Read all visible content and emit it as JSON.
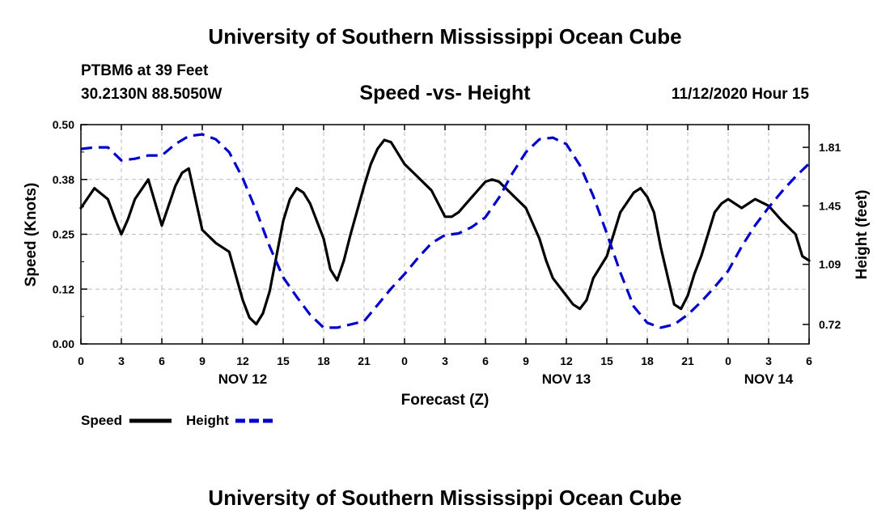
{
  "header": {
    "title": "University of Southern Mississippi Ocean Cube",
    "station": "PTBM6 at 39 Feet",
    "coords": "30.2130N 88.5050W",
    "chart_title": "Speed -vs- Height",
    "run_time": "11/12/2020 Hour 15"
  },
  "footer": {
    "title": "University of Southern Mississippi Ocean Cube"
  },
  "colors": {
    "speed": "#000000",
    "height": "#0000cc",
    "grid": "#bbbbbb"
  },
  "chart_data": {
    "type": "line",
    "title": "Speed -vs- Height",
    "xlabel": "Forecast (Z)",
    "ylabel": "Speed (Knots)",
    "y2label": "Height (feet)",
    "xlim": [
      0,
      54
    ],
    "ylim": [
      0,
      0.5
    ],
    "y2lim": [
      0.6,
      1.95
    ],
    "x_ticks": [
      0,
      3,
      6,
      9,
      12,
      15,
      18,
      21,
      24,
      27,
      30,
      33,
      36,
      39,
      42,
      45,
      48,
      51,
      54
    ],
    "x_tick_labels": [
      "0",
      "3",
      "6",
      "9",
      "12",
      "15",
      "18",
      "21",
      "0",
      "3",
      "6",
      "9",
      "12",
      "15",
      "18",
      "21",
      "0",
      "3",
      "6"
    ],
    "y_ticks": [
      0,
      0.125,
      0.25,
      0.375,
      0.5
    ],
    "y_tick_labels": [
      "0.00",
      "0.12",
      "0.25",
      "0.38",
      "0.50"
    ],
    "y2_ticks": [
      0.72,
      1.09,
      1.45,
      1.81
    ],
    "y2_tick_labels": [
      "0.72",
      "1.09",
      "1.45",
      "1.81"
    ],
    "date_labels": [
      {
        "x": 12,
        "label": "NOV 12"
      },
      {
        "x": 36,
        "label": "NOV 13"
      },
      {
        "x": 51,
        "label": "NOV 14"
      }
    ],
    "legend_position": "bottom-left",
    "series": [
      {
        "name": "Speed",
        "axis": "left",
        "style": "solid",
        "x": [
          0,
          1,
          2,
          2.6,
          3,
          3.5,
          4,
          5,
          6,
          7,
          7.5,
          8,
          9,
          10,
          11,
          12,
          12.5,
          13,
          13.5,
          14,
          15,
          15.5,
          16,
          16.5,
          17,
          18,
          18.5,
          19,
          19.5,
          20,
          21,
          21.5,
          22,
          22.5,
          23,
          24,
          25,
          26,
          26.5,
          27,
          27.5,
          28,
          29,
          30,
          30.5,
          31,
          32,
          33,
          34,
          34.5,
          35,
          36,
          36.5,
          37,
          37.5,
          38,
          39,
          40,
          41,
          41.5,
          42,
          42.5,
          43,
          44,
          44.5,
          45,
          45.5,
          46,
          47,
          47.5,
          48,
          48.5,
          49,
          50,
          51,
          52,
          53,
          53.5,
          54
        ],
        "values": [
          0.31,
          0.355,
          0.33,
          0.28,
          0.25,
          0.285,
          0.33,
          0.375,
          0.27,
          0.36,
          0.39,
          0.4,
          0.26,
          0.23,
          0.21,
          0.1,
          0.06,
          0.045,
          0.07,
          0.12,
          0.28,
          0.33,
          0.355,
          0.345,
          0.32,
          0.24,
          0.17,
          0.145,
          0.19,
          0.25,
          0.36,
          0.41,
          0.445,
          0.465,
          0.46,
          0.41,
          0.38,
          0.35,
          0.32,
          0.29,
          0.29,
          0.3,
          0.335,
          0.37,
          0.375,
          0.37,
          0.34,
          0.31,
          0.24,
          0.19,
          0.15,
          0.11,
          0.09,
          0.08,
          0.1,
          0.15,
          0.2,
          0.3,
          0.345,
          0.355,
          0.335,
          0.3,
          0.22,
          0.09,
          0.08,
          0.11,
          0.16,
          0.2,
          0.3,
          0.32,
          0.33,
          0.32,
          0.31,
          0.33,
          0.315,
          0.28,
          0.25,
          0.2,
          0.19
        ]
      },
      {
        "name": "Height",
        "axis": "right",
        "style": "dashed",
        "x": [
          0,
          1,
          2,
          3,
          4,
          5,
          6,
          7,
          8,
          9,
          10,
          11,
          12,
          13,
          14,
          15,
          16,
          17,
          18,
          19,
          20,
          21,
          22,
          23,
          24,
          25,
          26,
          27,
          28,
          29,
          30,
          31,
          32,
          33,
          34,
          35,
          36,
          37,
          38,
          39,
          40,
          41,
          42,
          43,
          44,
          45,
          46,
          47,
          48,
          49,
          50,
          51,
          52,
          53,
          54
        ],
        "values": [
          1.8,
          1.81,
          1.81,
          1.73,
          1.74,
          1.76,
          1.76,
          1.83,
          1.88,
          1.89,
          1.86,
          1.78,
          1.62,
          1.42,
          1.2,
          1.01,
          0.89,
          0.78,
          0.7,
          0.7,
          0.72,
          0.74,
          0.84,
          0.94,
          1.03,
          1.13,
          1.22,
          1.27,
          1.28,
          1.32,
          1.38,
          1.5,
          1.65,
          1.78,
          1.86,
          1.87,
          1.83,
          1.7,
          1.51,
          1.28,
          1.04,
          0.83,
          0.73,
          0.7,
          0.72,
          0.78,
          0.86,
          0.95,
          1.05,
          1.2,
          1.33,
          1.44,
          1.54,
          1.63,
          1.71
        ]
      }
    ]
  }
}
